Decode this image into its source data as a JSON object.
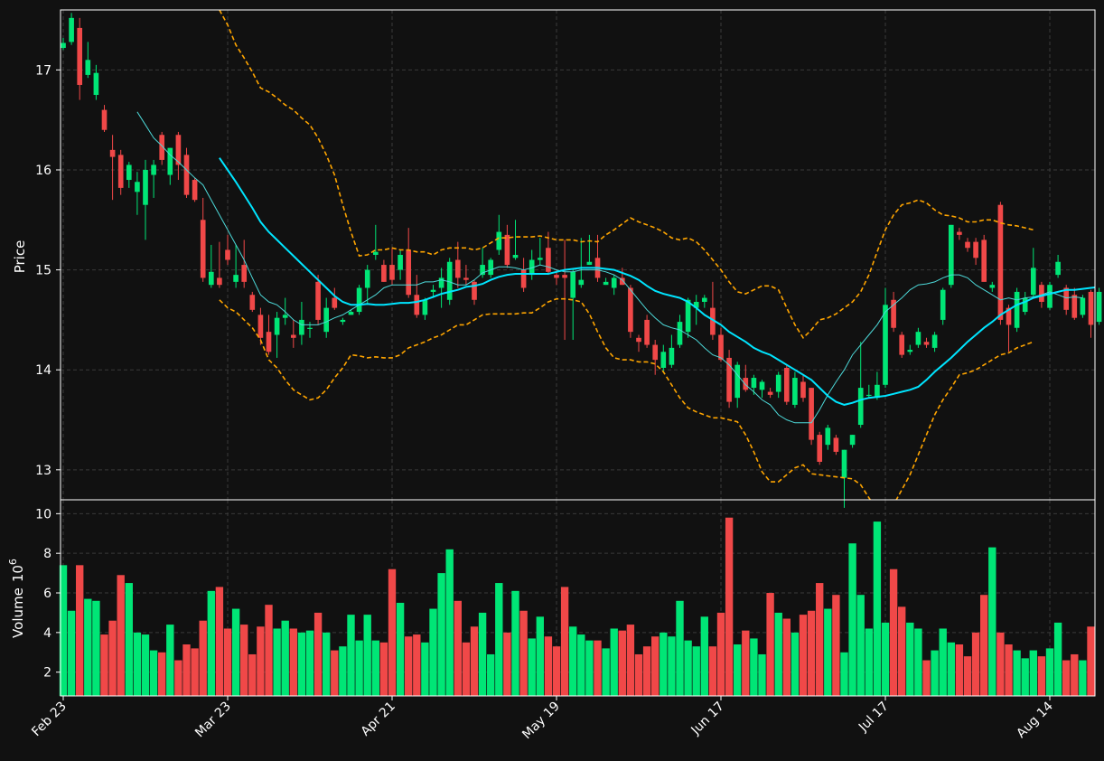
{
  "colors": {
    "background": "#111111",
    "up": "#00e676",
    "down": "#f04848",
    "ma_fast": "#4dd9d9",
    "ma_slow": "#00e5ff",
    "bollinger": "#ffa500",
    "grid": "#3a3a3a",
    "frame": "#ffffff",
    "text": "#ffffff"
  },
  "chart_data": {
    "type": "candlestick",
    "price_panel": {
      "ylabel": "Price",
      "ylim": [
        12.7,
        17.6
      ],
      "yticks": [
        13,
        14,
        15,
        16,
        17
      ]
    },
    "volume_panel": {
      "ylabel": "Volume",
      "ylabel_exponent": "10",
      "ylabel_exponent_power": "6",
      "ylim": [
        0.8,
        10.7
      ],
      "yticks": [
        2,
        4,
        6,
        8,
        10
      ]
    },
    "x_ticks": [
      {
        "index": 0,
        "label": "Feb 23"
      },
      {
        "index": 20,
        "label": "Mar 23"
      },
      {
        "index": 40,
        "label": "Apr 21"
      },
      {
        "index": 60,
        "label": "May 19"
      },
      {
        "index": 80,
        "label": "Jun 17"
      },
      {
        "index": 100,
        "label": "Jul 17"
      },
      {
        "index": 120,
        "label": "Aug 14"
      }
    ],
    "ohlc_columns": [
      "open",
      "high",
      "low",
      "close"
    ],
    "candles": [
      [
        17.22,
        17.32,
        17.2,
        17.27
      ],
      [
        17.28,
        17.57,
        17.25,
        17.52
      ],
      [
        17.42,
        17.52,
        16.7,
        16.85
      ],
      [
        16.95,
        17.28,
        16.92,
        17.1
      ],
      [
        16.75,
        17.05,
        16.7,
        16.97
      ],
      [
        16.6,
        16.65,
        16.38,
        16.4
      ],
      [
        16.2,
        16.35,
        15.7,
        16.13
      ],
      [
        16.15,
        16.2,
        15.75,
        15.82
      ],
      [
        15.9,
        16.08,
        15.82,
        16.05
      ],
      [
        15.78,
        15.98,
        15.55,
        15.88
      ],
      [
        15.65,
        16.1,
        15.3,
        16.0
      ],
      [
        15.95,
        16.1,
        15.72,
        16.05
      ],
      [
        16.35,
        16.38,
        16.05,
        16.1
      ],
      [
        15.95,
        16.22,
        15.85,
        16.22
      ],
      [
        16.35,
        16.38,
        15.9,
        16.05
      ],
      [
        16.15,
        16.22,
        15.72,
        15.75
      ],
      [
        15.9,
        15.92,
        15.68,
        15.7
      ],
      [
        15.5,
        15.72,
        14.88,
        14.92
      ],
      [
        14.85,
        15.25,
        14.82,
        14.98
      ],
      [
        14.92,
        15.28,
        14.82,
        14.85
      ],
      [
        15.2,
        15.35,
        15.05,
        15.1
      ],
      [
        14.88,
        15.25,
        14.82,
        14.95
      ],
      [
        15.05,
        15.3,
        14.82,
        14.88
      ],
      [
        14.75,
        14.78,
        14.58,
        14.6
      ],
      [
        14.55,
        14.62,
        14.25,
        14.32
      ],
      [
        14.38,
        14.55,
        14.15,
        14.18
      ],
      [
        14.35,
        14.58,
        14.12,
        14.52
      ],
      [
        14.52,
        14.72,
        14.45,
        14.55
      ],
      [
        14.35,
        14.5,
        14.22,
        14.32
      ],
      [
        14.35,
        14.68,
        14.25,
        14.5
      ],
      [
        14.42,
        14.48,
        14.32,
        14.42
      ],
      [
        14.88,
        14.95,
        14.45,
        14.5
      ],
      [
        14.38,
        14.72,
        14.32,
        14.62
      ],
      [
        14.72,
        14.82,
        14.6,
        14.62
      ],
      [
        14.48,
        14.52,
        14.45,
        14.5
      ],
      [
        14.55,
        14.6,
        14.55,
        14.58
      ],
      [
        14.58,
        14.85,
        14.55,
        14.82
      ],
      [
        14.82,
        15.05,
        14.65,
        15.0
      ],
      [
        15.15,
        15.45,
        15.1,
        15.18
      ],
      [
        15.05,
        15.1,
        14.88,
        14.88
      ],
      [
        15.05,
        15.22,
        14.85,
        14.9
      ],
      [
        15.0,
        15.2,
        14.9,
        15.15
      ],
      [
        15.2,
        15.42,
        14.72,
        14.75
      ],
      [
        14.75,
        14.95,
        14.52,
        14.55
      ],
      [
        14.55,
        14.72,
        14.5,
        14.7
      ],
      [
        14.78,
        14.85,
        14.72,
        14.8
      ],
      [
        14.82,
        15.02,
        14.62,
        14.92
      ],
      [
        14.7,
        15.12,
        14.65,
        15.08
      ],
      [
        15.1,
        15.28,
        14.82,
        14.92
      ],
      [
        14.92,
        15.05,
        14.85,
        14.9
      ],
      [
        14.88,
        14.9,
        14.65,
        14.7
      ],
      [
        14.95,
        15.22,
        14.92,
        15.05
      ],
      [
        14.95,
        15.12,
        14.92,
        15.1
      ],
      [
        15.2,
        15.55,
        15.15,
        15.38
      ],
      [
        15.35,
        15.45,
        15.02,
        15.05
      ],
      [
        15.12,
        15.5,
        15.1,
        15.15
      ],
      [
        15.0,
        15.12,
        14.78,
        14.82
      ],
      [
        14.95,
        15.2,
        14.9,
        15.1
      ],
      [
        15.1,
        15.32,
        15.05,
        15.12
      ],
      [
        15.22,
        15.38,
        14.95,
        14.98
      ],
      [
        14.95,
        15.0,
        14.85,
        14.92
      ],
      [
        14.95,
        15.3,
        14.3,
        14.92
      ],
      [
        14.72,
        15.0,
        14.3,
        14.98
      ],
      [
        14.85,
        15.32,
        14.82,
        14.9
      ],
      [
        15.05,
        15.35,
        15.05,
        15.08
      ],
      [
        15.12,
        15.35,
        14.88,
        14.92
      ],
      [
        14.85,
        14.92,
        14.85,
        14.88
      ],
      [
        14.82,
        14.95,
        14.75,
        14.92
      ],
      [
        14.92,
        15.02,
        14.85,
        14.85
      ],
      [
        14.82,
        14.85,
        14.32,
        14.38
      ],
      [
        14.32,
        14.35,
        14.18,
        14.28
      ],
      [
        14.5,
        14.55,
        14.22,
        14.25
      ],
      [
        14.25,
        14.3,
        13.95,
        14.1
      ],
      [
        14.02,
        14.25,
        13.98,
        14.18
      ],
      [
        14.05,
        14.35,
        14.02,
        14.22
      ],
      [
        14.25,
        14.55,
        14.22,
        14.48
      ],
      [
        14.38,
        14.72,
        14.32,
        14.7
      ],
      [
        14.62,
        14.75,
        14.45,
        14.68
      ],
      [
        14.68,
        14.75,
        14.62,
        14.72
      ],
      [
        14.62,
        14.88,
        14.3,
        14.35
      ],
      [
        14.35,
        14.42,
        14.08,
        14.1
      ],
      [
        14.12,
        14.2,
        13.62,
        13.68
      ],
      [
        13.72,
        14.08,
        13.62,
        14.05
      ],
      [
        13.92,
        14.05,
        13.78,
        13.8
      ],
      [
        13.82,
        13.95,
        13.75,
        13.92
      ],
      [
        13.8,
        13.9,
        13.72,
        13.88
      ],
      [
        13.78,
        13.82,
        13.72,
        13.75
      ],
      [
        13.78,
        13.98,
        13.72,
        13.95
      ],
      [
        14.02,
        14.05,
        13.65,
        13.68
      ],
      [
        13.65,
        13.98,
        13.62,
        13.92
      ],
      [
        13.88,
        13.95,
        13.68,
        13.72
      ],
      [
        13.82,
        13.82,
        13.25,
        13.3
      ],
      [
        13.35,
        13.38,
        13.05,
        13.08
      ],
      [
        13.25,
        13.45,
        13.2,
        13.42
      ],
      [
        13.32,
        13.35,
        13.15,
        13.18
      ],
      [
        12.92,
        13.2,
        12.62,
        13.2
      ],
      [
        13.25,
        13.35,
        13.22,
        13.35
      ],
      [
        13.45,
        14.28,
        13.42,
        13.82
      ],
      [
        13.75,
        13.85,
        13.72,
        13.75
      ],
      [
        13.72,
        13.98,
        13.7,
        13.85
      ],
      [
        13.85,
        14.82,
        13.82,
        14.65
      ],
      [
        14.7,
        14.78,
        14.38,
        14.42
      ],
      [
        14.35,
        14.38,
        14.12,
        14.15
      ],
      [
        14.18,
        14.25,
        14.15,
        14.2
      ],
      [
        14.25,
        14.42,
        14.22,
        14.38
      ],
      [
        14.28,
        14.32,
        14.22,
        14.25
      ],
      [
        14.22,
        14.38,
        14.18,
        14.35
      ],
      [
        14.5,
        14.82,
        14.45,
        14.8
      ],
      [
        14.85,
        15.45,
        14.82,
        15.45
      ],
      [
        15.38,
        15.42,
        15.3,
        15.35
      ],
      [
        15.28,
        15.32,
        15.18,
        15.22
      ],
      [
        15.28,
        15.32,
        15.05,
        15.12
      ],
      [
        15.3,
        15.35,
        14.88,
        14.88
      ],
      [
        14.82,
        14.88,
        14.78,
        14.85
      ],
      [
        15.65,
        15.68,
        14.45,
        14.5
      ],
      [
        14.62,
        14.65,
        14.18,
        14.45
      ],
      [
        14.42,
        14.82,
        14.38,
        14.78
      ],
      [
        14.58,
        14.78,
        14.55,
        14.72
      ],
      [
        14.75,
        15.22,
        14.72,
        15.02
      ],
      [
        14.85,
        14.88,
        14.62,
        14.68
      ],
      [
        14.62,
        14.88,
        14.6,
        14.85
      ],
      [
        14.95,
        15.15,
        14.92,
        15.08
      ],
      [
        14.82,
        14.85,
        14.55,
        14.6
      ],
      [
        14.75,
        14.82,
        14.5,
        14.52
      ],
      [
        14.55,
        14.75,
        14.52,
        14.72
      ],
      [
        14.78,
        14.8,
        14.32,
        14.45
      ],
      [
        14.48,
        14.82,
        14.45,
        14.78
      ],
      [
        14.8,
        14.82,
        14.48,
        14.52
      ]
    ],
    "volume": [
      7.4,
      5.1,
      7.4,
      5.7,
      5.6,
      3.9,
      4.6,
      6.9,
      6.5,
      4.0,
      3.9,
      3.1,
      3.0,
      4.4,
      2.6,
      3.4,
      3.2,
      4.6,
      6.1,
      6.3,
      4.2,
      5.2,
      4.4,
      2.9,
      4.3,
      5.4,
      4.2,
      4.6,
      4.2,
      4.0,
      4.1,
      5.0,
      4.0,
      3.1,
      3.3,
      4.9,
      3.6,
      4.9,
      3.6,
      3.5,
      7.2,
      5.5,
      3.8,
      3.9,
      3.5,
      5.2,
      7.0,
      8.2,
      5.6,
      3.5,
      4.3,
      5.0,
      2.9,
      6.5,
      4.0,
      6.1,
      5.1,
      3.7,
      4.8,
      3.8,
      3.3,
      6.3,
      4.3,
      3.9,
      3.6,
      3.6,
      3.2,
      4.2,
      4.1,
      4.4,
      2.9,
      3.3,
      3.8,
      4.0,
      3.8,
      5.6,
      3.6,
      3.3,
      4.8,
      3.3,
      5.0,
      9.8,
      3.4,
      4.1,
      3.7,
      2.9,
      6.0,
      5.0,
      4.7,
      4.0,
      4.9,
      5.1,
      6.5,
      5.2,
      5.9,
      3.0,
      8.5,
      5.9,
      4.2,
      9.6,
      4.5,
      7.2,
      5.3,
      4.5,
      4.2,
      2.6,
      3.1,
      4.2,
      3.5,
      3.4,
      2.8,
      4.0,
      5.9,
      8.3,
      4.0,
      3.4,
      3.1,
      2.7,
      3.1,
      2.8,
      3.2,
      4.5,
      2.6,
      2.9,
      2.6,
      4.3
    ],
    "series": [
      {
        "name": "",
        "kind": "ma_fast",
        "start": 9,
        "values": [
          16.58,
          16.45,
          16.32,
          16.24,
          16.15,
          16.08,
          16.0,
          15.92,
          15.85,
          15.7,
          15.55,
          15.4,
          15.25,
          15.1,
          14.92,
          14.75,
          14.68,
          14.65,
          14.58,
          14.5,
          14.45,
          14.45,
          14.45,
          14.48,
          14.52,
          14.55,
          14.6,
          14.65,
          14.7,
          14.75,
          14.82,
          14.85,
          14.85,
          14.85,
          14.85,
          14.88,
          14.88,
          14.9,
          14.88,
          14.85,
          14.85,
          14.9,
          14.97,
          15.0,
          15.03,
          15.03,
          15.02,
          15.0,
          15.02,
          15.05,
          15.03,
          15.0,
          14.98,
          14.98,
          15.0,
          15.0,
          15.0,
          14.98,
          14.95,
          14.9,
          14.8,
          14.7,
          14.6,
          14.52,
          14.45,
          14.42,
          14.4,
          14.35,
          14.3,
          14.22,
          14.15,
          14.12,
          14.05,
          13.95,
          13.85,
          13.78,
          13.7,
          13.65,
          13.55,
          13.5,
          13.47,
          13.47,
          13.47,
          13.6,
          13.75,
          13.88,
          14.0,
          14.15,
          14.25,
          14.35,
          14.45,
          14.58,
          14.65,
          14.72,
          14.8,
          14.85,
          14.86,
          14.88,
          14.92,
          14.95,
          14.95,
          14.92,
          14.85,
          14.8,
          14.75,
          14.7,
          14.72,
          14.7,
          14.72,
          14.73,
          14.75,
          14.78,
          14.75,
          14.72,
          14.73,
          14.72
        ]
      },
      {
        "name": "",
        "kind": "ma_slow",
        "start": 19,
        "values": [
          16.12,
          16.0,
          15.88,
          15.75,
          15.62,
          15.48,
          15.38,
          15.3,
          15.22,
          15.14,
          15.06,
          14.98,
          14.9,
          14.82,
          14.74,
          14.68,
          14.65,
          14.65,
          14.66,
          14.65,
          14.65,
          14.66,
          14.67,
          14.67,
          14.68,
          14.7,
          14.73,
          14.76,
          14.78,
          14.8,
          14.83,
          14.84,
          14.86,
          14.9,
          14.93,
          14.95,
          14.96,
          14.96,
          14.96,
          14.96,
          14.96,
          14.98,
          15.0,
          15.01,
          15.02,
          15.02,
          15.02,
          15.01,
          15.0,
          14.97,
          14.94,
          14.9,
          14.84,
          14.79,
          14.76,
          14.74,
          14.72,
          14.68,
          14.62,
          14.55,
          14.5,
          14.45,
          14.38,
          14.33,
          14.28,
          14.22,
          14.18,
          14.15,
          14.1,
          14.05,
          14.0,
          13.95,
          13.9,
          13.82,
          13.74,
          13.68,
          13.65,
          13.67,
          13.7,
          13.72,
          13.73,
          13.74,
          13.76,
          13.78,
          13.8,
          13.83,
          13.9,
          13.98,
          14.05,
          14.12,
          14.2,
          14.28,
          14.35,
          14.42,
          14.48,
          14.55,
          14.6,
          14.65,
          14.68,
          14.72,
          14.74,
          14.76,
          14.78,
          14.8,
          14.8,
          14.81,
          14.82,
          14.83
        ]
      },
      {
        "name": "",
        "kind": "boll_upper",
        "start": 19,
        "values": [
          17.6,
          17.45,
          17.25,
          17.12,
          16.98,
          16.82,
          16.78,
          16.72,
          16.65,
          16.6,
          16.52,
          16.45,
          16.32,
          16.15,
          15.95,
          15.65,
          15.38,
          15.14,
          15.15,
          15.2,
          15.2,
          15.22,
          15.2,
          15.2,
          15.18,
          15.18,
          15.15,
          15.2,
          15.22,
          15.22,
          15.22,
          15.2,
          15.22,
          15.27,
          15.32,
          15.32,
          15.33,
          15.33,
          15.33,
          15.34,
          15.32,
          15.3,
          15.3,
          15.3,
          15.28,
          15.29,
          15.28,
          15.35,
          15.4,
          15.46,
          15.52,
          15.48,
          15.45,
          15.42,
          15.38,
          15.32,
          15.3,
          15.32,
          15.28,
          15.2,
          15.1,
          15.0,
          14.88,
          14.78,
          14.76,
          14.8,
          14.84,
          14.84,
          14.8,
          14.62,
          14.45,
          14.32,
          14.4,
          14.5,
          14.52,
          14.56,
          14.62,
          14.68,
          14.78,
          14.95,
          15.18,
          15.4,
          15.55,
          15.65,
          15.67,
          15.7,
          15.67,
          15.6,
          15.55,
          15.54,
          15.52,
          15.48,
          15.48,
          15.5,
          15.5,
          15.47,
          15.45,
          15.44,
          15.42,
          15.4
        ]
      },
      {
        "name": "",
        "kind": "boll_lower",
        "start": 19,
        "values": [
          14.7,
          14.62,
          14.58,
          14.5,
          14.42,
          14.3,
          14.1,
          14.02,
          13.9,
          13.8,
          13.75,
          13.7,
          13.72,
          13.8,
          13.92,
          14.02,
          14.15,
          14.14,
          14.12,
          14.13,
          14.12,
          14.12,
          14.15,
          14.22,
          14.25,
          14.28,
          14.32,
          14.35,
          14.4,
          14.45,
          14.45,
          14.5,
          14.55,
          14.56,
          14.56,
          14.56,
          14.56,
          14.57,
          14.57,
          14.62,
          14.68,
          14.71,
          14.71,
          14.7,
          14.68,
          14.56,
          14.38,
          14.22,
          14.12,
          14.1,
          14.1,
          14.08,
          14.08,
          14.06,
          13.98,
          13.85,
          13.72,
          13.62,
          13.58,
          13.55,
          13.52,
          13.52,
          13.5,
          13.48,
          13.35,
          13.18,
          12.98,
          12.88,
          12.88,
          12.95,
          13.02,
          13.05,
          12.96,
          12.95,
          12.94,
          12.93,
          12.92,
          12.91,
          12.85,
          12.72,
          12.6,
          12.55,
          12.65,
          12.8,
          12.95,
          13.15,
          13.35,
          13.55,
          13.7,
          13.82,
          13.95,
          13.97,
          14.0,
          14.05,
          14.1,
          14.15,
          14.17,
          14.22,
          14.25,
          14.28
        ]
      }
    ]
  }
}
